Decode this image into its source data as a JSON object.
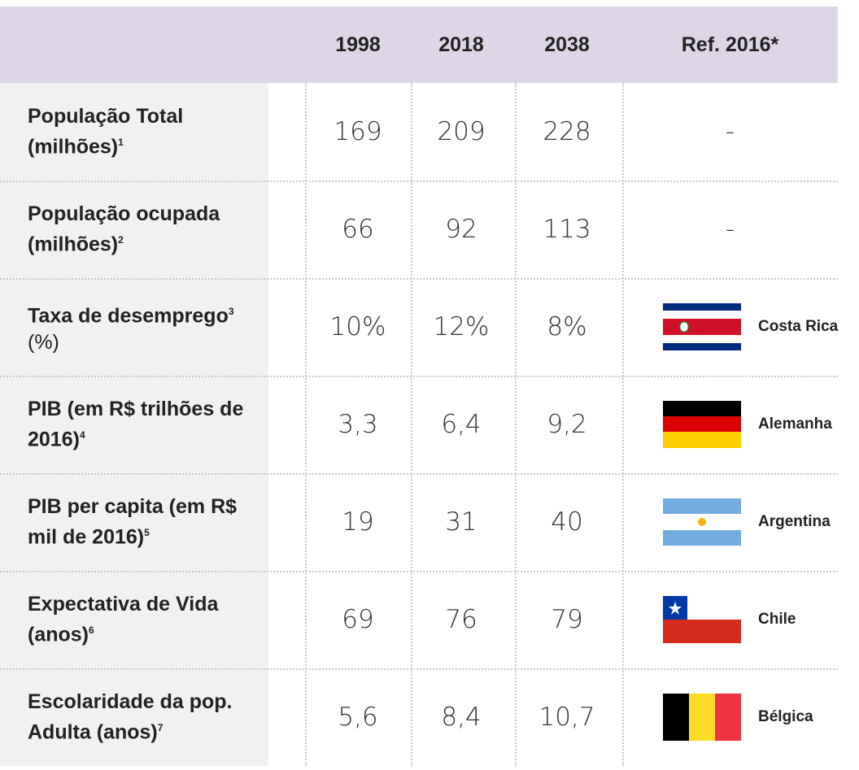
{
  "table": {
    "header": [
      "1998",
      "2018",
      "2038",
      "Ref. 2016*"
    ],
    "rows": [
      {
        "label": "População Total (milhões)",
        "note": "1",
        "values": [
          "169",
          "209",
          "228"
        ],
        "ref": "-"
      },
      {
        "label": "População ocupada (milhões)",
        "note": "2",
        "values": [
          "66",
          "92",
          "113"
        ],
        "ref": "-"
      },
      {
        "label": "Taxa de desemprego",
        "note": "3",
        "unit": "(%)",
        "values": [
          "10%",
          "12%",
          "8%"
        ],
        "ref": "Costa Rica"
      },
      {
        "label": "PIB (em R$ trilhões de 2016)",
        "note": "4",
        "values": [
          "3,3",
          "6,4",
          "9,2"
        ],
        "ref": "Alemanha"
      },
      {
        "label": "PIB per capita (em R$ mil de 2016)",
        "note": "5",
        "values": [
          "19",
          "31",
          "40"
        ],
        "ref": "Argentina"
      },
      {
        "label": "Expectativa de Vida (anos)",
        "note": "6",
        "values": [
          "69",
          "76",
          "79"
        ],
        "ref": "Chile"
      },
      {
        "label": "Escolaridade da pop. Adulta (anos)",
        "note": "7",
        "values": [
          "5,6",
          "8,4",
          "10,7"
        ],
        "ref": "Bélgica"
      }
    ]
  }
}
